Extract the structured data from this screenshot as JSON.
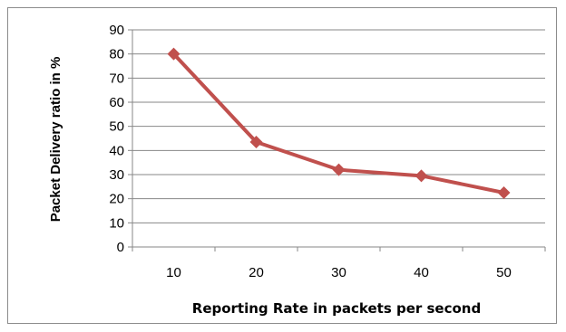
{
  "chart_data": {
    "type": "line",
    "categories": [
      "10",
      "20",
      "30",
      "40",
      "50"
    ],
    "series": [
      {
        "values": [
          80,
          43.5,
          32,
          29.5,
          22.5
        ]
      }
    ],
    "title": "",
    "xlabel": "Reporting Rate in packets per second",
    "ylabel": "Packet Delivery ratio in %",
    "ylim": [
      0,
      90
    ],
    "yticks": [
      0,
      10,
      20,
      30,
      40,
      50,
      60,
      70,
      80,
      90
    ],
    "grid": true,
    "legend": "none",
    "line_color": "#c0504d",
    "marker": "diamond"
  }
}
